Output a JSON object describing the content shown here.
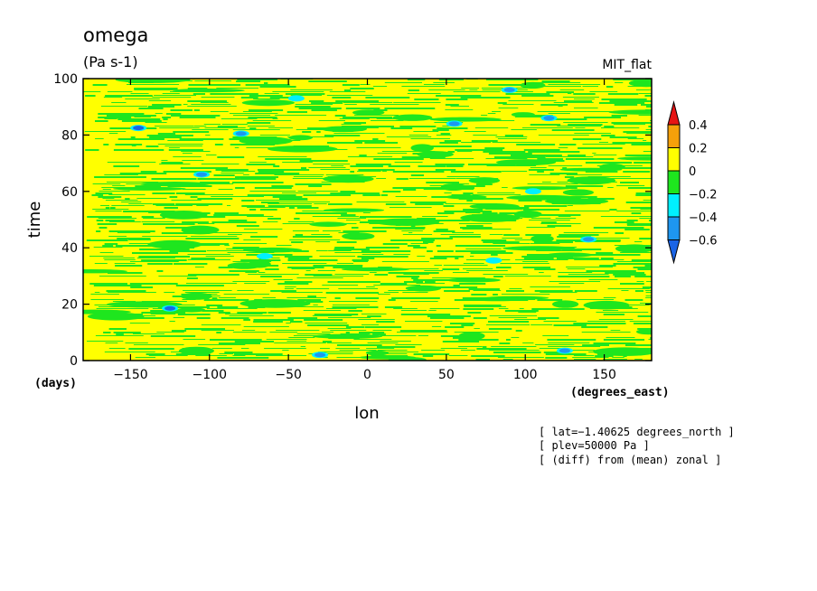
{
  "chart_data": {
    "type": "heatmap",
    "title": "omega",
    "units": "(Pa s-1)",
    "dataset": "MIT_flat",
    "xlabel": "lon",
    "x_units": "(degrees_east)",
    "ylabel": "time",
    "y_units": "(days)",
    "xlim": [
      -180,
      180
    ],
    "ylim": [
      0,
      100
    ],
    "x_ticks": [
      -150,
      -100,
      -50,
      0,
      50,
      100,
      150
    ],
    "x_tick_labels": [
      "−150",
      "−100",
      "−50",
      "0",
      "50",
      "100",
      "150"
    ],
    "y_ticks": [
      0,
      20,
      40,
      60,
      80,
      100
    ],
    "y_tick_labels": [
      "0",
      "20",
      "40",
      "60",
      "80",
      "100"
    ],
    "colorbar": {
      "levels": [
        -0.6,
        -0.4,
        -0.2,
        0,
        0.2,
        0.4
      ],
      "labels": [
        "−0.6",
        "−0.4",
        "−0.2",
        "0",
        "0.2",
        "0.4"
      ],
      "bins": [
        {
          "range": "< -0.6",
          "color": "#1a64e6"
        },
        {
          "range": "-0.6 to -0.4",
          "color": "#1e96f0"
        },
        {
          "range": "-0.4 to -0.2",
          "color": "#00f0ff"
        },
        {
          "range": "-0.2 to 0",
          "color": "#1ee61e"
        },
        {
          "range": "0 to 0.2",
          "color": "#ffff00"
        },
        {
          "range": "0.2 to 0.4",
          "color": "#f5a00a"
        },
        {
          "range": "> 0.4",
          "color": "#e61414"
        }
      ]
    },
    "field_description": "mostly yellow (0 to 0.2) and green (-0.2 to 0) streaks elongated in longitude, with scattered small cyan/blue negative patches",
    "blue_patches": [
      {
        "lon": -145,
        "time": 82.5,
        "value": -0.65
      },
      {
        "lon": -80,
        "time": 80.5,
        "value": -0.55
      },
      {
        "lon": -105,
        "time": 66,
        "value": -0.55
      },
      {
        "lon": -125,
        "time": 18.5,
        "value": -0.65
      },
      {
        "lon": -30,
        "time": 2,
        "value": -0.6
      },
      {
        "lon": 55,
        "time": 84,
        "value": -0.45
      },
      {
        "lon": 90,
        "time": 96,
        "value": -0.45
      },
      {
        "lon": 115,
        "time": 86,
        "value": -0.45
      },
      {
        "lon": 105,
        "time": 60,
        "value": -0.4
      },
      {
        "lon": 140,
        "time": 43,
        "value": -0.45
      },
      {
        "lon": 125,
        "time": 3.5,
        "value": -0.45
      },
      {
        "lon": -45,
        "time": 93,
        "value": -0.35
      },
      {
        "lon": -65,
        "time": 37,
        "value": -0.3
      },
      {
        "lon": 80,
        "time": 35.5,
        "value": -0.3
      }
    ]
  },
  "notes": [
    "[ lat=−1.40625 degrees_north ]",
    "[ plev=50000 Pa ]",
    "[ (diff) from (mean) zonal ]"
  ]
}
